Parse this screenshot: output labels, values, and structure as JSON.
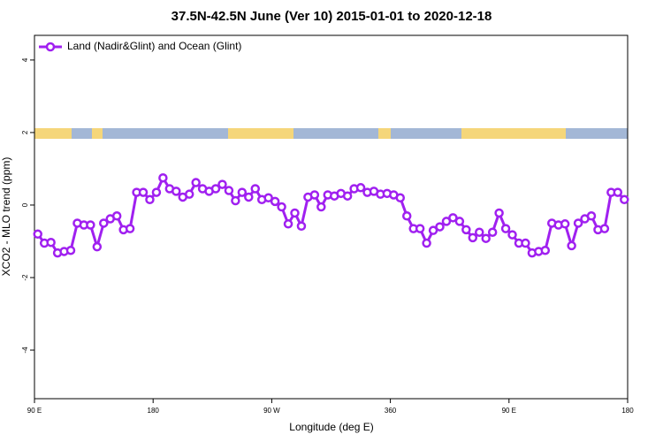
{
  "chart_data": {
    "type": "line",
    "title": "37.5N-42.5N June (Ver 10)   2015-01-01 to 2020-12-18",
    "xlabel": "Longitude (deg E)",
    "ylabel": "XCO2 - MLO trend (ppm)",
    "x": [
      92.5,
      97.5,
      102.5,
      107.5,
      112.5,
      117.5,
      122.5,
      127.5,
      132.5,
      137.5,
      142.5,
      147.5,
      152.5,
      157.5,
      162.5,
      167.5,
      172.5,
      177.5,
      182.5,
      187.5,
      192.5,
      197.5,
      202.5,
      207.5,
      212.5,
      217.5,
      222.5,
      227.5,
      232.5,
      237.5,
      242.5,
      247.5,
      252.5,
      257.5,
      262.5,
      267.5,
      272.5,
      277.5,
      282.5,
      287.5,
      292.5,
      297.5,
      302.5,
      307.5,
      312.5,
      317.5,
      322.5,
      327.5,
      332.5,
      337.5,
      342.5,
      347.5,
      352.5,
      357.5,
      362.5,
      367.5,
      372.5,
      377.5,
      382.5,
      387.5,
      392.5,
      397.5,
      402.5,
      407.5,
      412.5,
      417.5,
      422.5,
      427.5,
      432.5,
      437.5,
      442.5,
      447.5,
      452.5,
      457.5,
      462.5,
      467.5,
      472.5,
      477.5,
      482.5,
      487.5,
      492.5,
      497.5,
      502.5,
      507.5,
      512.5,
      517.5,
      522.5,
      527.5,
      532.5,
      537.5
    ],
    "series": [
      {
        "name": "Land (Nadir&Glint) and Ocean (Glint)",
        "color": "#a020f0",
        "values": [
          -0.8,
          -1.05,
          -1.03,
          -1.32,
          -1.28,
          -1.25,
          -0.5,
          -0.55,
          -0.55,
          -1.15,
          -0.5,
          -0.38,
          -0.3,
          -0.68,
          -0.65,
          0.35,
          0.35,
          0.15,
          0.35,
          0.75,
          0.45,
          0.38,
          0.22,
          0.3,
          0.62,
          0.45,
          0.38,
          0.45,
          0.57,
          0.4,
          0.12,
          0.35,
          0.22,
          0.45,
          0.15,
          0.2,
          0.1,
          -0.05,
          -0.52,
          -0.22,
          -0.58,
          0.22,
          0.28,
          -0.05,
          0.28,
          0.25,
          0.32,
          0.25,
          0.45,
          0.48,
          0.35,
          0.38,
          0.3,
          0.32,
          0.28,
          0.2,
          -0.3,
          -0.65,
          -0.65,
          -1.05,
          -0.7,
          -0.6,
          -0.45,
          -0.35,
          -0.45,
          -0.68,
          -0.9,
          -0.75,
          -0.92,
          -0.75,
          -0.22,
          -0.65,
          -0.82,
          -1.05,
          -1.05,
          -1.32,
          -1.28,
          -1.25,
          -0.5,
          -0.55,
          -0.52,
          -1.12,
          -0.5,
          -0.38,
          -0.3,
          -0.68,
          -0.65,
          0.35,
          0.35,
          0.15
        ]
      }
    ],
    "xlim": [
      90,
      540
    ],
    "xticks": [
      {
        "value": 90,
        "label": "90 E"
      },
      180,
      {
        "value": 270,
        "label": "90 W"
      },
      360,
      {
        "value": 450,
        "label": "90 E"
      },
      {
        "value": 540,
        "label": "180"
      }
    ],
    "ylim": [
      -5.34,
      4.68
    ],
    "yticks": [
      -4,
      -2,
      0,
      2,
      4
    ],
    "legend": "top-left"
  }
}
